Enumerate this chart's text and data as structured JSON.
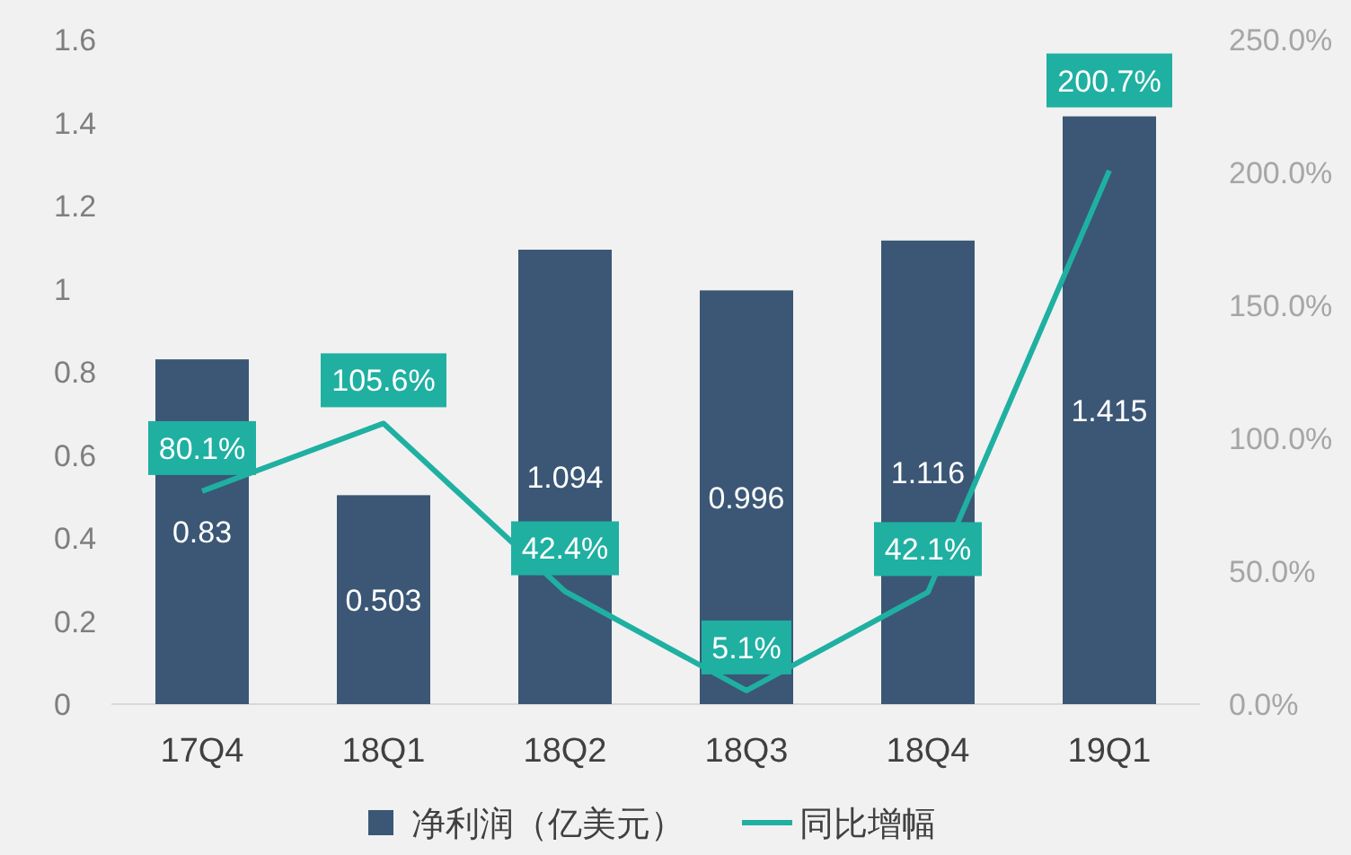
{
  "chart_data": {
    "type": "bar",
    "categories": [
      "17Q4",
      "18Q1",
      "18Q2",
      "18Q3",
      "18Q4",
      "19Q1"
    ],
    "series": [
      {
        "name": "净利润（亿美元）",
        "color": "#3b5775",
        "values": [
          0.83,
          0.503,
          1.094,
          0.996,
          1.116,
          1.415
        ],
        "value_labels": [
          "0.83",
          "0.503",
          "1.094",
          "0.996",
          "1.116",
          "1.415"
        ]
      },
      {
        "name": "同比增幅",
        "type": "line",
        "axis": "y2",
        "color": "#1fb0a2",
        "values": [
          80.1,
          105.6,
          42.4,
          5.1,
          42.1,
          200.7
        ],
        "value_labels": [
          "80.1%",
          "105.6%",
          "42.4%",
          "5.1%",
          "42.1%",
          "200.7%"
        ]
      }
    ],
    "ylim": [
      0,
      1.6
    ],
    "yticks": [
      0,
      0.2,
      0.4,
      0.6,
      0.8,
      1,
      1.2,
      1.4,
      1.6
    ],
    "y2lim": [
      0,
      250
    ],
    "y2ticks": [
      {
        "value": 0,
        "label": "0.0%"
      },
      {
        "value": 50,
        "label": "50.0%"
      },
      {
        "value": 100,
        "label": "100.0%"
      },
      {
        "value": 150,
        "label": "150.0%"
      },
      {
        "value": 200,
        "label": "200.0%"
      },
      {
        "value": 250,
        "label": "250.0%"
      }
    ],
    "legend": "bottom"
  }
}
